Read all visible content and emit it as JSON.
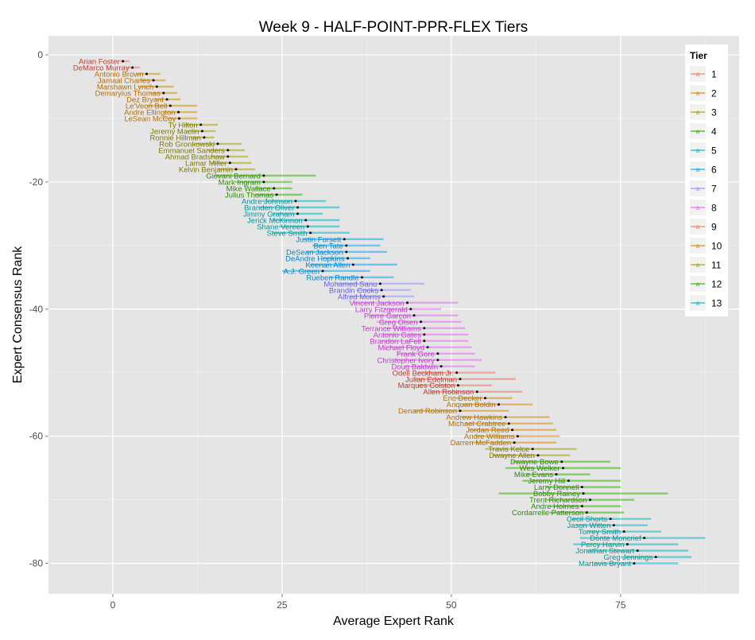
{
  "chart_data": {
    "type": "scatter",
    "title": "Week 9 - HALF-POINT-PPR-FLEX Tiers",
    "xlabel": "Average Expert Rank",
    "ylabel": "Expert Consensus Rank",
    "xlim": [
      -9.5,
      92.5
    ],
    "ylim": [
      -84.8,
      3.0
    ],
    "xticks": [
      0,
      25,
      50,
      75
    ],
    "yticks": [
      0,
      -20,
      -40,
      -60,
      -80
    ],
    "grid": true,
    "legend": {
      "title": "Tier",
      "position": "right-top",
      "glyph": "a",
      "items": [
        {
          "label": "1",
          "color": "#F8766D"
        },
        {
          "label": "2",
          "color": "#D89000"
        },
        {
          "label": "3",
          "color": "#A3A500"
        },
        {
          "label": "4",
          "color": "#39B600"
        },
        {
          "label": "5",
          "color": "#00BFC4"
        },
        {
          "label": "6",
          "color": "#00B0F6"
        },
        {
          "label": "7",
          "color": "#9590FF"
        },
        {
          "label": "8",
          "color": "#E76BF3"
        },
        {
          "label": "9",
          "color": "#F8766D"
        },
        {
          "label": "10",
          "color": "#D89000"
        },
        {
          "label": "11",
          "color": "#A3A500"
        },
        {
          "label": "12",
          "color": "#39B600"
        },
        {
          "label": "13",
          "color": "#00BFC4"
        }
      ]
    },
    "text_colors": [
      "#C23B2F",
      "#B86F00",
      "#7E7A00",
      "#2A8F00",
      "#00999E",
      "#0086CC",
      "#6A5FE0",
      "#C43AD0",
      "#C23B2F",
      "#B86F00",
      "#7E7A00",
      "#2A8F00",
      "#00999E"
    ],
    "players": [
      {
        "name": "Arian Foster",
        "tier": 1,
        "rank": -1,
        "avg": 1.5,
        "lo": 1.0,
        "hi": 2.5
      },
      {
        "name": "DeMarco Murray",
        "tier": 1,
        "rank": -2,
        "avg": 2.9,
        "lo": 2.0,
        "hi": 4.0
      },
      {
        "name": "Antonio Brown",
        "tier": 2,
        "rank": -3,
        "avg": 5.0,
        "lo": 3.5,
        "hi": 7.0
      },
      {
        "name": "Jamaal Charles",
        "tier": 2,
        "rank": -4,
        "avg": 6.0,
        "lo": 4.0,
        "hi": 7.8
      },
      {
        "name": "Marshawn Lynch",
        "tier": 2,
        "rank": -5,
        "avg": 6.5,
        "lo": 3.8,
        "hi": 9.0
      },
      {
        "name": "Demaryius Thomas",
        "tier": 2,
        "rank": -6,
        "avg": 7.5,
        "lo": 5.5,
        "hi": 9.5
      },
      {
        "name": "Dez Bryant",
        "tier": 2,
        "rank": -7,
        "avg": 8.0,
        "lo": 6.2,
        "hi": 10.0
      },
      {
        "name": "Le'Veon Bell",
        "tier": 2,
        "rank": -8,
        "avg": 8.5,
        "lo": 5.0,
        "hi": 12.5
      },
      {
        "name": "Andre Ellington",
        "tier": 2,
        "rank": -9,
        "avg": 9.7,
        "lo": 7.5,
        "hi": 12.5
      },
      {
        "name": "LeSean McCoy",
        "tier": 2,
        "rank": -10,
        "avg": 9.8,
        "lo": 7.5,
        "hi": 12.5
      },
      {
        "name": "Ty Hilton",
        "tier": 3,
        "rank": -11,
        "avg": 13.0,
        "lo": 10.5,
        "hi": 15.5
      },
      {
        "name": "Jeremy Maclin",
        "tier": 3,
        "rank": -12,
        "avg": 13.2,
        "lo": 11.0,
        "hi": 15.2
      },
      {
        "name": "Ronnie Hillman",
        "tier": 3,
        "rank": -13,
        "avg": 13.5,
        "lo": 11.5,
        "hi": 15.0
      },
      {
        "name": "Rob Gronkowski",
        "tier": 3,
        "rank": -14,
        "avg": 15.5,
        "lo": 12.0,
        "hi": 19.0
      },
      {
        "name": "Emmanuel Sanders",
        "tier": 3,
        "rank": -15,
        "avg": 17.0,
        "lo": 14.0,
        "hi": 19.5
      },
      {
        "name": "Ahmad Bradshaw",
        "tier": 3,
        "rank": -16,
        "avg": 17.0,
        "lo": 14.5,
        "hi": 20.0
      },
      {
        "name": "Lamar Miller",
        "tier": 3,
        "rank": -17,
        "avg": 17.3,
        "lo": 14.5,
        "hi": 20.5
      },
      {
        "name": "Kelvin Benjamin",
        "tier": 3,
        "rank": -18,
        "avg": 18.2,
        "lo": 15.5,
        "hi": 21.0
      },
      {
        "name": "Giovani Bernard",
        "tier": 4,
        "rank": -19,
        "avg": 22.3,
        "lo": 15.0,
        "hi": 30.0
      },
      {
        "name": "Mark Ingram",
        "tier": 4,
        "rank": -20,
        "avg": 22.3,
        "lo": 18.0,
        "hi": 26.5
      },
      {
        "name": "Mike Wallace",
        "tier": 4,
        "rank": -21,
        "avg": 23.8,
        "lo": 21.0,
        "hi": 26.5
      },
      {
        "name": "Julius Thomas",
        "tier": 4,
        "rank": -22,
        "avg": 24.2,
        "lo": 21.0,
        "hi": 28.0
      },
      {
        "name": "Andre Johnson",
        "tier": 5,
        "rank": -23,
        "avg": 27.0,
        "lo": 22.0,
        "hi": 31.5
      },
      {
        "name": "Branden Oliver",
        "tier": 5,
        "rank": -24,
        "avg": 27.3,
        "lo": 21.5,
        "hi": 33.5
      },
      {
        "name": "Jimmy Graham",
        "tier": 5,
        "rank": -25,
        "avg": 27.3,
        "lo": 23.5,
        "hi": 31.0
      },
      {
        "name": "Jerick McKinnon",
        "tier": 5,
        "rank": -26,
        "avg": 28.5,
        "lo": 23.5,
        "hi": 33.5
      },
      {
        "name": "Shane Vereen",
        "tier": 5,
        "rank": -27,
        "avg": 28.8,
        "lo": 24.5,
        "hi": 33.5
      },
      {
        "name": "Steve Smith",
        "tier": 5,
        "rank": -28,
        "avg": 29.2,
        "lo": 23.5,
        "hi": 35.0
      },
      {
        "name": "Justin Forsett",
        "tier": 6,
        "rank": -29,
        "avg": 34.2,
        "lo": 28.0,
        "hi": 40.0
      },
      {
        "name": "Ben Tate",
        "tier": 6,
        "rank": -30,
        "avg": 34.5,
        "lo": 29.5,
        "hi": 39.5
      },
      {
        "name": "DeSean Jackson",
        "tier": 6,
        "rank": -31,
        "avg": 34.5,
        "lo": 28.5,
        "hi": 40.5
      },
      {
        "name": "DeAndre Hopkins",
        "tier": 6,
        "rank": -32,
        "avg": 34.7,
        "lo": 31.0,
        "hi": 38.0
      },
      {
        "name": "Keenan Allen",
        "tier": 6,
        "rank": -33,
        "avg": 35.5,
        "lo": 29.0,
        "hi": 42.0
      },
      {
        "name": "A.J. Green",
        "tier": 6,
        "rank": -34,
        "avg": 31.0,
        "lo": 25.0,
        "hi": 38.0
      },
      {
        "name": "Rueben Randle",
        "tier": 6,
        "rank": -35,
        "avg": 36.8,
        "lo": 32.0,
        "hi": 41.5
      },
      {
        "name": "Mohamed Sanu",
        "tier": 7,
        "rank": -36,
        "avg": 39.5,
        "lo": 33.0,
        "hi": 46.0
      },
      {
        "name": "Brandin Cooks",
        "tier": 7,
        "rank": -37,
        "avg": 39.7,
        "lo": 36.0,
        "hi": 44.0
      },
      {
        "name": "Alfred Morris",
        "tier": 7,
        "rank": -38,
        "avg": 40.0,
        "lo": 35.0,
        "hi": 44.5
      },
      {
        "name": "Vincent Jackson",
        "tier": 8,
        "rank": -39,
        "avg": 43.5,
        "lo": 35.5,
        "hi": 51.0
      },
      {
        "name": "Larry Fitzgerald",
        "tier": 8,
        "rank": -40,
        "avg": 44.0,
        "lo": 40.0,
        "hi": 48.5
      },
      {
        "name": "Pierre Garcon",
        "tier": 8,
        "rank": -41,
        "avg": 44.5,
        "lo": 38.0,
        "hi": 51.0
      },
      {
        "name": "Greg Olsen",
        "tier": 8,
        "rank": -42,
        "avg": 45.5,
        "lo": 39.0,
        "hi": 51.5
      },
      {
        "name": "Terrance Williams",
        "tier": 8,
        "rank": -43,
        "avg": 46.0,
        "lo": 40.0,
        "hi": 52.0
      },
      {
        "name": "Antonio Gates",
        "tier": 8,
        "rank": -44,
        "avg": 46.0,
        "lo": 40.0,
        "hi": 52.5
      },
      {
        "name": "Brandon LaFell",
        "tier": 8,
        "rank": -45,
        "avg": 46.0,
        "lo": 39.5,
        "hi": 52.5
      },
      {
        "name": "Michael Floyd",
        "tier": 8,
        "rank": -46,
        "avg": 46.5,
        "lo": 40.5,
        "hi": 53.0
      },
      {
        "name": "Frank Gore",
        "tier": 8,
        "rank": -47,
        "avg": 48.0,
        "lo": 42.0,
        "hi": 53.5
      },
      {
        "name": "Christopher Ivory",
        "tier": 8,
        "rank": -48,
        "avg": 48.0,
        "lo": 41.5,
        "hi": 54.5
      },
      {
        "name": "Doug Baldwin",
        "tier": 8,
        "rank": -49,
        "avg": 48.5,
        "lo": 43.0,
        "hi": 53.5
      },
      {
        "name": "Odell Beckham Jr.",
        "tier": 9,
        "rank": -50,
        "avg": 50.8,
        "lo": 45.0,
        "hi": 56.5
      },
      {
        "name": "Julian Edelman",
        "tier": 9,
        "rank": -51,
        "avg": 51.3,
        "lo": 44.5,
        "hi": 59.5
      },
      {
        "name": "Marques Colston",
        "tier": 9,
        "rank": -52,
        "avg": 51.0,
        "lo": 45.0,
        "hi": 56.0
      },
      {
        "name": "Allen Robinson",
        "tier": 9,
        "rank": -53,
        "avg": 53.8,
        "lo": 47.0,
        "hi": 60.5
      },
      {
        "name": "Eric Decker",
        "tier": 10,
        "rank": -54,
        "avg": 55.0,
        "lo": 50.5,
        "hi": 59.0
      },
      {
        "name": "Anquan Boldin",
        "tier": 10,
        "rank": -55,
        "avg": 57.0,
        "lo": 51.5,
        "hi": 62.0
      },
      {
        "name": "Denard Robinson",
        "tier": 10,
        "rank": -56,
        "avg": 51.3,
        "lo": 44.5,
        "hi": 58.5
      },
      {
        "name": "Andrew Hawkins",
        "tier": 10,
        "rank": -57,
        "avg": 58.0,
        "lo": 51.5,
        "hi": 64.5
      },
      {
        "name": "Michael Crabtree",
        "tier": 10,
        "rank": -58,
        "avg": 58.5,
        "lo": 52.0,
        "hi": 65.0
      },
      {
        "name": "Jordan Reed",
        "tier": 10,
        "rank": -59,
        "avg": 59.0,
        "lo": 52.5,
        "hi": 65.5
      },
      {
        "name": "Andre Williams",
        "tier": 10,
        "rank": -60,
        "avg": 59.8,
        "lo": 53.5,
        "hi": 66.0
      },
      {
        "name": "Darren McFadden",
        "tier": 10,
        "rank": -61,
        "avg": 59.3,
        "lo": 53.0,
        "hi": 65.5
      },
      {
        "name": "Travis Kelce",
        "tier": 11,
        "rank": -62,
        "avg": 62.0,
        "lo": 55.0,
        "hi": 68.5
      },
      {
        "name": "Dwayne Allen",
        "tier": 11,
        "rank": -63,
        "avg": 62.8,
        "lo": 56.0,
        "hi": 67.5
      },
      {
        "name": "Dwayne Bowe",
        "tier": 12,
        "rank": -64,
        "avg": 66.3,
        "lo": 59.0,
        "hi": 73.5
      },
      {
        "name": "Wes Welker",
        "tier": 12,
        "rank": -65,
        "avg": 66.5,
        "lo": 58.0,
        "hi": 75.0
      },
      {
        "name": "Mike Evans",
        "tier": 12,
        "rank": -66,
        "avg": 65.5,
        "lo": 61.0,
        "hi": 70.5
      },
      {
        "name": "Jeremy Hill",
        "tier": 12,
        "rank": -67,
        "avg": 67.3,
        "lo": 60.5,
        "hi": 75.0
      },
      {
        "name": "Larry Donnell",
        "tier": 12,
        "rank": -68,
        "avg": 69.3,
        "lo": 64.0,
        "hi": 75.0
      },
      {
        "name": "Bobby Rainey",
        "tier": 12,
        "rank": -69,
        "avg": 69.5,
        "lo": 57.0,
        "hi": 82.0
      },
      {
        "name": "Trent Richardson",
        "tier": 12,
        "rank": -70,
        "avg": 70.5,
        "lo": 64.0,
        "hi": 77.0
      },
      {
        "name": "Andre Holmes",
        "tier": 12,
        "rank": -71,
        "avg": 69.3,
        "lo": 64.5,
        "hi": 75.0
      },
      {
        "name": "Cordarrelle Patterson",
        "tier": 12,
        "rank": -72,
        "avg": 70.0,
        "lo": 64.5,
        "hi": 75.5
      },
      {
        "name": "Cecil Shorts",
        "tier": 13,
        "rank": -73,
        "avg": 73.5,
        "lo": 67.5,
        "hi": 79.5
      },
      {
        "name": "Jason Witten",
        "tier": 13,
        "rank": -74,
        "avg": 74.0,
        "lo": 68.5,
        "hi": 79.0
      },
      {
        "name": "Torrey Smith",
        "tier": 13,
        "rank": -75,
        "avg": 75.5,
        "lo": 70.0,
        "hi": 81.0
      },
      {
        "name": "Donte Moncrief",
        "tier": 13,
        "rank": -76,
        "avg": 78.5,
        "lo": 69.0,
        "hi": 87.5
      },
      {
        "name": "Percy Harvin",
        "tier": 13,
        "rank": -77,
        "avg": 76.0,
        "lo": 68.0,
        "hi": 83.5
      },
      {
        "name": "Jonathan Stewart",
        "tier": 13,
        "rank": -78,
        "avg": 77.5,
        "lo": 70.0,
        "hi": 85.0
      },
      {
        "name": "Greg Jennings",
        "tier": 13,
        "rank": -79,
        "avg": 80.2,
        "lo": 75.0,
        "hi": 85.5
      },
      {
        "name": "Martavis Bryant",
        "tier": 13,
        "rank": -80,
        "avg": 77.0,
        "lo": 71.0,
        "hi": 83.5
      }
    ]
  }
}
